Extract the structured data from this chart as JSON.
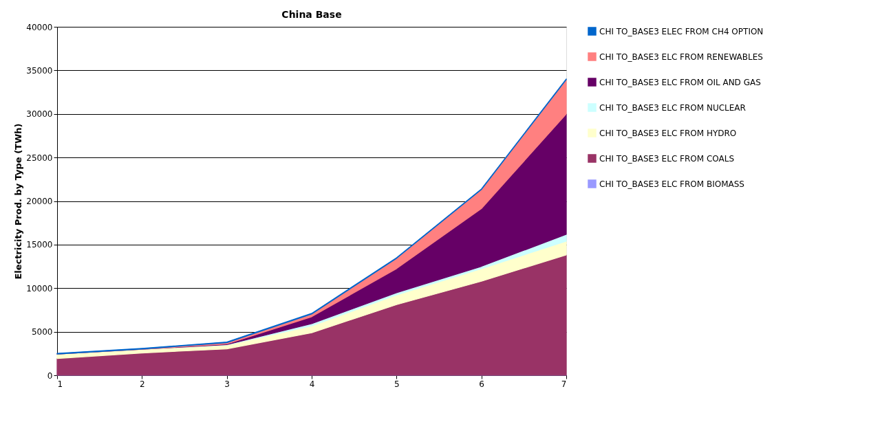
{
  "chart_data": {
    "type": "area",
    "stacked": true,
    "title": "China Base",
    "ylabel": "Electricity Prod. by Type (TWh)",
    "x": [
      1,
      2,
      3,
      4,
      5,
      6,
      7
    ],
    "xlim": [
      1,
      7
    ],
    "xticks": [
      1,
      2,
      3,
      4,
      5,
      6,
      7
    ],
    "ylim": [
      0,
      40000
    ],
    "yticks": [
      0,
      5000,
      10000,
      15000,
      20000,
      25000,
      30000,
      35000,
      40000
    ],
    "grid": "y",
    "legend": "right",
    "series": [
      {
        "name": "CHI TO_BASE3 ELC FROM BIOMASS",
        "color": "#9999ff",
        "values": [
          10,
          10,
          10,
          10,
          10,
          10,
          10
        ]
      },
      {
        "name": "CHI TO_BASE3 ELC FROM COALS",
        "color": "#993366",
        "values": [
          1920,
          2550,
          3020,
          4870,
          8100,
          10780,
          13810
        ]
      },
      {
        "name": "CHI TO_BASE3 ELC FROM HYDRO",
        "color": "#ffffcc",
        "values": [
          500,
          420,
          450,
          790,
          1100,
          1450,
          1570
        ]
      },
      {
        "name": "CHI TO_BASE3 ELC FROM NUCLEAR",
        "color": "#ccffff",
        "values": [
          10,
          10,
          30,
          260,
          270,
          260,
          790
        ]
      },
      {
        "name": "CHI TO_BASE3 ELC FROM OIL AND GAS",
        "color": "#660066",
        "values": [
          0,
          0,
          80,
          790,
          2760,
          6630,
          13810
        ]
      },
      {
        "name": "CHI TO_BASE3 ELC FROM RENEWABLES",
        "color": "#ff8080",
        "values": [
          0,
          20,
          150,
          310,
          1180,
          2180,
          3950
        ]
      },
      {
        "name": "CHI TO_BASE3 ELEC FROM CH4 OPTION",
        "color": "#0066cc",
        "values": [
          80,
          80,
          80,
          80,
          80,
          80,
          80
        ]
      }
    ]
  }
}
